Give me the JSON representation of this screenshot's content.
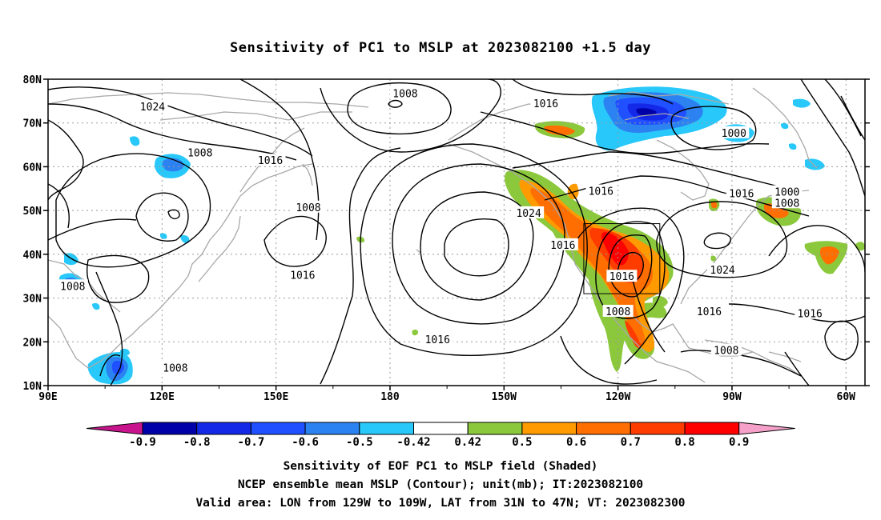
{
  "title": "Sensitivity of PC1 to MSLP at 2023082100 +1.5 day",
  "map": {
    "lat_labels": [
      "80N",
      "70N",
      "60N",
      "50N",
      "40N",
      "30N",
      "20N",
      "10N"
    ],
    "lon_labels": [
      "90E",
      "120E",
      "150E",
      "180",
      "150W",
      "120W",
      "90W",
      "60W"
    ],
    "contour_labels": [
      {
        "text": "1008",
        "lon": 184,
        "lat": 76.8
      },
      {
        "text": "1024",
        "lon": 117.5,
        "lat": 73.8
      },
      {
        "text": "1016",
        "lon": 221,
        "lat": 74.5
      },
      {
        "text": "1000",
        "lon": 270.5,
        "lat": 67.8
      },
      {
        "text": "1008",
        "lon": 130,
        "lat": 63.3
      },
      {
        "text": "1016",
        "lon": 148.5,
        "lat": 61.5
      },
      {
        "text": "1016",
        "lon": 235.5,
        "lat": 54.5
      },
      {
        "text": "1016",
        "lon": 272.5,
        "lat": 54
      },
      {
        "text": "1000",
        "lon": 284.5,
        "lat": 54.3
      },
      {
        "text": "1008",
        "lon": 284.5,
        "lat": 51.8
      },
      {
        "text": "1008",
        "lon": 158.5,
        "lat": 50.8
      },
      {
        "text": "1024",
        "lon": 216.5,
        "lat": 49.5
      },
      {
        "text": "1016",
        "lon": 225.5,
        "lat": 42.2
      },
      {
        "text": "1024",
        "lon": 267.5,
        "lat": 36.5
      },
      {
        "text": "1016",
        "lon": 157,
        "lat": 35.3
      },
      {
        "text": "1016",
        "lon": 241,
        "lat": 35
      },
      {
        "text": "1008",
        "lon": 96.5,
        "lat": 32.8
      },
      {
        "text": "1008",
        "lon": 240,
        "lat": 27
      },
      {
        "text": "1016",
        "lon": 264,
        "lat": 27
      },
      {
        "text": "1016",
        "lon": 290.5,
        "lat": 26.5
      },
      {
        "text": "1016",
        "lon": 192.5,
        "lat": 20.6
      },
      {
        "text": "1008",
        "lon": 268.5,
        "lat": 18.1
      },
      {
        "text": "1008",
        "lon": 123.5,
        "lat": 14.1
      }
    ],
    "valid_box": {
      "lon_w": 231,
      "lon_e": 251,
      "lat_s": 31,
      "lat_n": 47
    }
  },
  "colorbar": {
    "labels": [
      "-0.9",
      "-0.8",
      "-0.7",
      "-0.6",
      "-0.5",
      "-0.42",
      "0.42",
      "0.5",
      "0.6",
      "0.7",
      "0.8",
      "0.9"
    ],
    "colors": [
      "#0000a8",
      "#1428e8",
      "#2050ff",
      "#2c82f0",
      "#28c8fa",
      "#ffffff",
      "#8cc83c",
      "#ff9a00",
      "#ff6e00",
      "#ff3c00",
      "#ff0000"
    ],
    "left_arrow_color": "#c8148c",
    "right_arrow_color": "#f4a0c8"
  },
  "captions": [
    "Sensitivity of EOF PC1 to MSLP field (Shaded)",
    "NCEP ensemble mean MSLP (Contour); unit(mb); IT:2023082100",
    "Valid area: LON from 129W to 109W, LAT from 31N to 47N; VT: 2023082300"
  ]
}
